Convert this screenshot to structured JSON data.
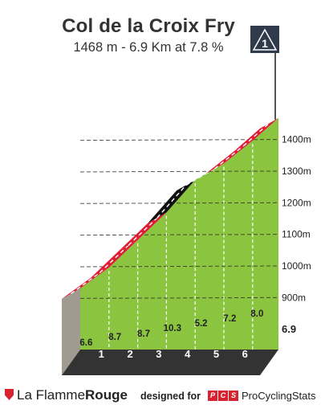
{
  "header": {
    "title": "Col de la Croix Fry",
    "subtitle": "1468 m - 6.9 Km at 7.8 %"
  },
  "summit_marker": {
    "label": "1",
    "icon": "category-1-climb-marker-icon"
  },
  "footer": {
    "brand_part1": "La Flamme",
    "brand_part2": "Rouge",
    "brand_icon": "red-flag-icon",
    "designed_for": "designed for",
    "pcs_letters": [
      "P",
      "C",
      "S"
    ],
    "pcs_name": "ProCyclingStats"
  },
  "colors": {
    "green": "#8bc53f",
    "red": "#e11d35",
    "blue": "#1c5d86",
    "black": "#111111",
    "base": "#333333",
    "grey": "#a09a91"
  },
  "chart_data": {
    "type": "area",
    "xlabel": "",
    "ylabel": "",
    "xlim": [
      0,
      6.9
    ],
    "ylim": [
      800,
      1468
    ],
    "km_ticks": [
      "1",
      "2",
      "3",
      "4",
      "5",
      "6"
    ],
    "finish_distance_label": "6.9",
    "elevation_ticks": [
      {
        "value": 900,
        "label": "900m"
      },
      {
        "value": 1000,
        "label": "1000m"
      },
      {
        "value": 1100,
        "label": "1100m"
      },
      {
        "value": 1200,
        "label": "1200m"
      },
      {
        "value": 1300,
        "label": "1300m"
      },
      {
        "value": 1400,
        "label": "1400m"
      }
    ],
    "segments": [
      {
        "km_from": 0,
        "km_to": 1,
        "gradient": 6.6,
        "label": "6.6",
        "color": "red"
      },
      {
        "km_from": 1,
        "km_to": 2,
        "gradient": 8.7,
        "label": "8.7",
        "color": "red"
      },
      {
        "km_from": 2,
        "km_to": 3,
        "gradient": 8.7,
        "label": "8.7",
        "color": "red"
      },
      {
        "km_from": 3,
        "km_to": 4,
        "gradient": 10.3,
        "label": "10.3",
        "color": "black"
      },
      {
        "km_from": 4,
        "km_to": 5,
        "gradient": 5.2,
        "label": "5.2",
        "color": "blue"
      },
      {
        "km_from": 5,
        "km_to": 6,
        "gradient": 7.2,
        "label": "7.2",
        "color": "red"
      },
      {
        "km_from": 6,
        "km_to": 6.9,
        "gradient": 8.0,
        "label": "8.0",
        "color": "red"
      }
    ],
    "finish_elevation": 1468
  }
}
